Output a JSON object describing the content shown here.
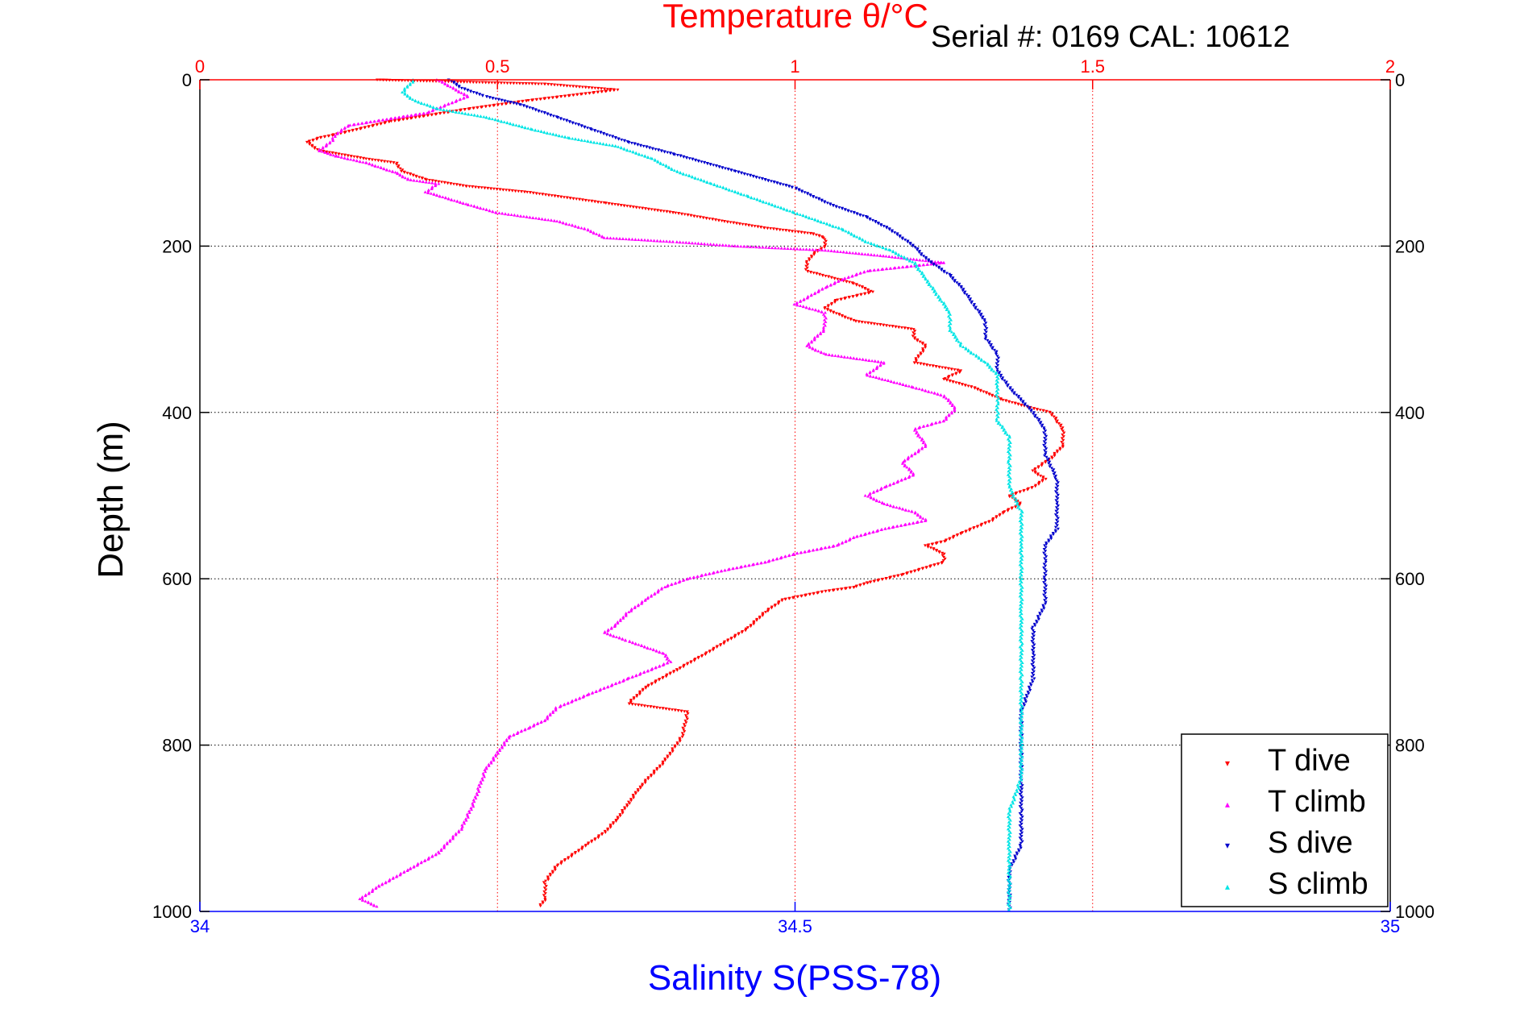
{
  "chart_data": {
    "type": "scatter",
    "title": "Temperature θ/°C",
    "annotation": "Serial #: 0169 CAL: 10612",
    "xlabel_top": "Temperature θ/°C",
    "xlabel_bottom": "Salinity S(PSS-78)",
    "ylabel": "Depth (m)",
    "temperature_axis": {
      "range": [
        0,
        2
      ],
      "ticks": [
        0,
        0.5,
        1,
        1.5,
        2
      ],
      "tick_labels": [
        "0",
        "0.5",
        "1",
        "1.5",
        "2"
      ]
    },
    "salinity_axis": {
      "range": [
        34,
        35
      ],
      "ticks": [
        34,
        34.5,
        35
      ],
      "tick_labels": [
        "34",
        "34.5",
        "35"
      ]
    },
    "depth_axis": {
      "range": [
        0,
        1000
      ],
      "reversed": true,
      "ticks": [
        0,
        200,
        400,
        600,
        800,
        1000
      ],
      "tick_labels": [
        "0",
        "200",
        "400",
        "600",
        "800",
        "1000"
      ]
    },
    "grid": true,
    "legend_position": "bottom-right",
    "colors": {
      "temperature_axis": "#ff0000",
      "salinity_axis": "#0000ff",
      "depth_grid": "#000000",
      "t_dive": "#ff0000",
      "t_climb": "#ff00ff",
      "s_dive": "#0000cc",
      "s_climb": "#00e5e5"
    },
    "series": [
      {
        "name": "T dive",
        "axis": "temperature",
        "color": "#ff0000",
        "points": [
          [
            0.3,
            0
          ],
          [
            0.58,
            5
          ],
          [
            0.7,
            12
          ],
          [
            0.55,
            25
          ],
          [
            0.45,
            35
          ],
          [
            0.32,
            50
          ],
          [
            0.25,
            62
          ],
          [
            0.2,
            70
          ],
          [
            0.18,
            75
          ],
          [
            0.2,
            85
          ],
          [
            0.28,
            95
          ],
          [
            0.33,
            100
          ],
          [
            0.34,
            110
          ],
          [
            0.38,
            120
          ],
          [
            0.45,
            128
          ],
          [
            0.55,
            135
          ],
          [
            0.68,
            148
          ],
          [
            0.8,
            160
          ],
          [
            0.88,
            170
          ],
          [
            0.95,
            178
          ],
          [
            1.03,
            185
          ],
          [
            1.05,
            190
          ],
          [
            1.05,
            200
          ],
          [
            1.03,
            210
          ],
          [
            1.02,
            220
          ],
          [
            1.02,
            230
          ],
          [
            1.1,
            245
          ],
          [
            1.13,
            255
          ],
          [
            1.07,
            265
          ],
          [
            1.05,
            275
          ],
          [
            1.1,
            290
          ],
          [
            1.2,
            300
          ],
          [
            1.2,
            310
          ],
          [
            1.22,
            320
          ],
          [
            1.2,
            340
          ],
          [
            1.28,
            350
          ],
          [
            1.25,
            360
          ],
          [
            1.3,
            370
          ],
          [
            1.35,
            385
          ],
          [
            1.4,
            395
          ],
          [
            1.43,
            400
          ],
          [
            1.44,
            410
          ],
          [
            1.45,
            420
          ],
          [
            1.45,
            440
          ],
          [
            1.43,
            455
          ],
          [
            1.4,
            470
          ],
          [
            1.42,
            480
          ],
          [
            1.4,
            490
          ],
          [
            1.36,
            500
          ],
          [
            1.38,
            510
          ],
          [
            1.35,
            520
          ],
          [
            1.33,
            530
          ],
          [
            1.28,
            545
          ],
          [
            1.25,
            555
          ],
          [
            1.22,
            560
          ],
          [
            1.25,
            570
          ],
          [
            1.25,
            580
          ],
          [
            1.18,
            595
          ],
          [
            1.12,
            605
          ],
          [
            1.1,
            610
          ],
          [
            1.05,
            615
          ],
          [
            0.98,
            625
          ],
          [
            0.95,
            640
          ],
          [
            0.92,
            660
          ],
          [
            0.85,
            690
          ],
          [
            0.8,
            710
          ],
          [
            0.75,
            730
          ],
          [
            0.72,
            750
          ],
          [
            0.82,
            760
          ],
          [
            0.81,
            790
          ],
          [
            0.78,
            820
          ],
          [
            0.74,
            850
          ],
          [
            0.72,
            870
          ],
          [
            0.7,
            890
          ],
          [
            0.68,
            905
          ],
          [
            0.65,
            920
          ],
          [
            0.6,
            945
          ],
          [
            0.58,
            965
          ],
          [
            0.58,
            985
          ],
          [
            0.57,
            995
          ]
        ]
      },
      {
        "name": "T climb",
        "axis": "temperature",
        "color": "#ff00ff",
        "points": [
          [
            0.4,
            0
          ],
          [
            0.45,
            20
          ],
          [
            0.38,
            40
          ],
          [
            0.25,
            55
          ],
          [
            0.23,
            65
          ],
          [
            0.22,
            75
          ],
          [
            0.2,
            85
          ],
          [
            0.23,
            92
          ],
          [
            0.28,
            100
          ],
          [
            0.33,
            112
          ],
          [
            0.35,
            120
          ],
          [
            0.4,
            125
          ],
          [
            0.38,
            135
          ],
          [
            0.45,
            150
          ],
          [
            0.5,
            160
          ],
          [
            0.6,
            170
          ],
          [
            0.65,
            180
          ],
          [
            0.68,
            190
          ],
          [
            0.8,
            195
          ],
          [
            0.9,
            200
          ],
          [
            1.05,
            205
          ],
          [
            1.15,
            212
          ],
          [
            1.25,
            220
          ],
          [
            1.12,
            230
          ],
          [
            1.08,
            240
          ],
          [
            1.05,
            250
          ],
          [
            1.0,
            270
          ],
          [
            1.05,
            280
          ],
          [
            1.05,
            300
          ],
          [
            1.02,
            320
          ],
          [
            1.05,
            330
          ],
          [
            1.15,
            340
          ],
          [
            1.12,
            355
          ],
          [
            1.2,
            370
          ],
          [
            1.25,
            380
          ],
          [
            1.27,
            395
          ],
          [
            1.25,
            410
          ],
          [
            1.2,
            420
          ],
          [
            1.22,
            440
          ],
          [
            1.18,
            460
          ],
          [
            1.2,
            475
          ],
          [
            1.15,
            490
          ],
          [
            1.12,
            500
          ],
          [
            1.15,
            510
          ],
          [
            1.2,
            520
          ],
          [
            1.22,
            530
          ],
          [
            1.15,
            540
          ],
          [
            1.1,
            550
          ],
          [
            1.07,
            560
          ],
          [
            1.0,
            570
          ],
          [
            0.95,
            580
          ],
          [
            0.88,
            590
          ],
          [
            0.82,
            600
          ],
          [
            0.78,
            610
          ],
          [
            0.75,
            625
          ],
          [
            0.72,
            640
          ],
          [
            0.7,
            655
          ],
          [
            0.68,
            665
          ],
          [
            0.72,
            675
          ],
          [
            0.78,
            690
          ],
          [
            0.79,
            700
          ],
          [
            0.72,
            720
          ],
          [
            0.65,
            740
          ],
          [
            0.6,
            755
          ],
          [
            0.58,
            770
          ],
          [
            0.55,
            780
          ],
          [
            0.52,
            790
          ],
          [
            0.5,
            810
          ],
          [
            0.48,
            830
          ],
          [
            0.47,
            850
          ],
          [
            0.46,
            870
          ],
          [
            0.44,
            900
          ],
          [
            0.4,
            930
          ],
          [
            0.35,
            950
          ],
          [
            0.3,
            970
          ],
          [
            0.27,
            985
          ],
          [
            0.3,
            995
          ]
        ]
      },
      {
        "name": "S dive",
        "axis": "salinity",
        "color": "#0000cc",
        "points": [
          [
            34.21,
            0
          ],
          [
            34.22,
            10
          ],
          [
            34.24,
            20
          ],
          [
            34.27,
            30
          ],
          [
            34.3,
            45
          ],
          [
            34.33,
            60
          ],
          [
            34.36,
            75
          ],
          [
            34.4,
            90
          ],
          [
            34.45,
            110
          ],
          [
            34.5,
            130
          ],
          [
            34.53,
            150
          ],
          [
            34.56,
            165
          ],
          [
            34.58,
            180
          ],
          [
            34.59,
            190
          ],
          [
            34.6,
            200
          ],
          [
            34.61,
            215
          ],
          [
            34.63,
            235
          ],
          [
            34.64,
            250
          ],
          [
            34.65,
            270
          ],
          [
            34.66,
            290
          ],
          [
            34.66,
            310
          ],
          [
            34.67,
            330
          ],
          [
            34.67,
            350
          ],
          [
            34.68,
            370
          ],
          [
            34.69,
            385
          ],
          [
            34.7,
            400
          ],
          [
            34.71,
            420
          ],
          [
            34.71,
            450
          ],
          [
            34.72,
            480
          ],
          [
            34.72,
            510
          ],
          [
            34.72,
            540
          ],
          [
            34.71,
            560
          ],
          [
            34.71,
            580
          ],
          [
            34.71,
            600
          ],
          [
            34.71,
            630
          ],
          [
            34.7,
            660
          ],
          [
            34.7,
            690
          ],
          [
            34.7,
            720
          ],
          [
            34.69,
            760
          ],
          [
            34.69,
            800
          ],
          [
            34.69,
            840
          ],
          [
            34.69,
            880
          ],
          [
            34.69,
            920
          ],
          [
            34.68,
            950
          ],
          [
            34.68,
            980
          ],
          [
            34.68,
            1000
          ]
        ]
      },
      {
        "name": "S climb",
        "axis": "salinity",
        "color": "#00e5e5",
        "points": [
          [
            34.18,
            0
          ],
          [
            34.17,
            15
          ],
          [
            34.18,
            25
          ],
          [
            34.2,
            35
          ],
          [
            34.24,
            45
          ],
          [
            34.28,
            60
          ],
          [
            34.31,
            70
          ],
          [
            34.35,
            80
          ],
          [
            34.38,
            95
          ],
          [
            34.4,
            110
          ],
          [
            34.43,
            125
          ],
          [
            34.46,
            140
          ],
          [
            34.5,
            160
          ],
          [
            34.54,
            180
          ],
          [
            34.56,
            195
          ],
          [
            34.58,
            205
          ],
          [
            34.6,
            220
          ],
          [
            34.61,
            240
          ],
          [
            34.62,
            260
          ],
          [
            34.63,
            280
          ],
          [
            34.63,
            300
          ],
          [
            34.64,
            320
          ],
          [
            34.66,
            340
          ],
          [
            34.67,
            355
          ],
          [
            34.67,
            370
          ],
          [
            34.67,
            390
          ],
          [
            34.67,
            410
          ],
          [
            34.68,
            430
          ],
          [
            34.68,
            460
          ],
          [
            34.68,
            490
          ],
          [
            34.69,
            520
          ],
          [
            34.69,
            560
          ],
          [
            34.69,
            600
          ],
          [
            34.69,
            640
          ],
          [
            34.69,
            680
          ],
          [
            34.69,
            720
          ],
          [
            34.69,
            760
          ],
          [
            34.69,
            800
          ],
          [
            34.69,
            840
          ],
          [
            34.68,
            880
          ],
          [
            34.68,
            920
          ],
          [
            34.68,
            960
          ],
          [
            34.68,
            1000
          ]
        ]
      }
    ]
  }
}
